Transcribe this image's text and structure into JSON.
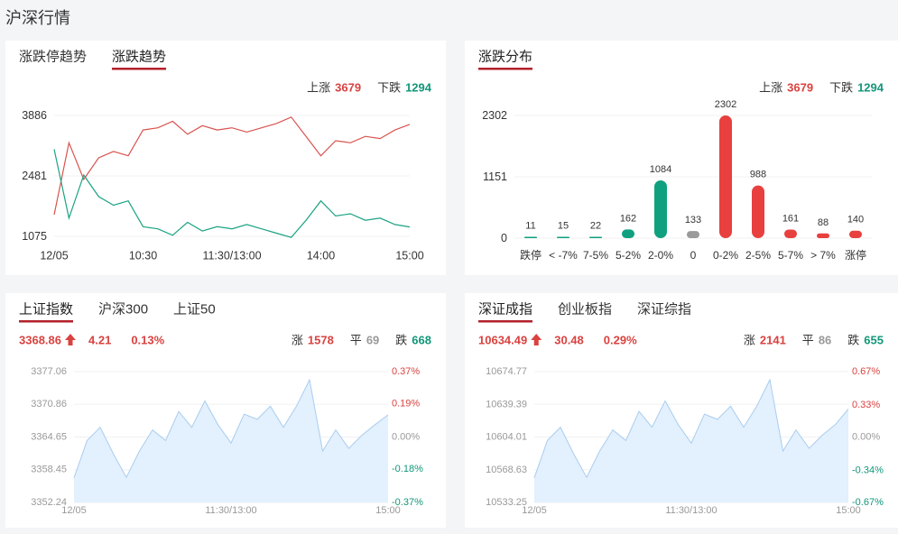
{
  "header": {
    "title": "沪深行情"
  },
  "panels": [
    {
      "tabs": [
        "涨跌停趋势",
        "涨跌趋势"
      ],
      "active_tab": 1,
      "stats": [
        {
          "label": "上涨",
          "value": 3679,
          "color": "#d9423f"
        },
        {
          "label": "下跌",
          "value": 1294,
          "color": "#12977a"
        }
      ],
      "chart_data": {
        "type": "line",
        "x": [
          0,
          10,
          20,
          30,
          40,
          50,
          60,
          70,
          80,
          90,
          100,
          110,
          120,
          130,
          140,
          150,
          160,
          170,
          180,
          190,
          200,
          210,
          220,
          230,
          240
        ],
        "xlim": [
          0,
          240
        ],
        "xticks": [
          {
            "value": 0,
            "label": "12/05"
          },
          {
            "value": 60,
            "label": "10:30"
          },
          {
            "value": 120,
            "label": "11:30/13:00"
          },
          {
            "value": 180,
            "label": "14:00"
          },
          {
            "value": 240,
            "label": "15:00"
          }
        ],
        "ylim": [
          1000,
          4000
        ],
        "yticks": [
          1075,
          2481,
          3886
        ],
        "grid": true,
        "series": [
          {
            "color": "#d9534f",
            "values": [
              1576,
              3250,
              2400,
              2900,
              3050,
              2950,
              3550,
              3600,
              3750,
              3450,
              3650,
              3550,
              3600,
              3500,
              3600,
              3700,
              3850,
              3400,
              2950,
              3300,
              3250,
              3400,
              3350,
              3550,
              3679
            ]
          },
          {
            "color": "#1aa382",
            "values": [
              3100,
              1500,
              2500,
              2000,
              1800,
              1900,
              1300,
              1250,
              1100,
              1400,
              1200,
              1300,
              1250,
              1350,
              1250,
              1150,
              1050,
              1450,
              1900,
              1550,
              1600,
              1450,
              1500,
              1350,
              1294
            ]
          }
        ]
      }
    },
    {
      "tabs": [
        "涨跌分布"
      ],
      "active_tab": 0,
      "stats": [
        {
          "label": "上涨",
          "value": 3679,
          "color": "#d9423f"
        },
        {
          "label": "下跌",
          "value": 1294,
          "color": "#12977a"
        }
      ],
      "chart_data": {
        "type": "bar",
        "categories": [
          "跌停",
          "< -7%",
          "7-5%",
          "5-2%",
          "2-0%",
          "0",
          "0-2%",
          "2-5%",
          "5-7%",
          "> 7%",
          "涨停"
        ],
        "values": [
          11,
          15,
          22,
          162,
          1084,
          133,
          2302,
          988,
          161,
          88,
          140
        ],
        "colors": [
          "#0fa17f",
          "#0fa17f",
          "#0fa17f",
          "#0fa17f",
          "#0fa17f",
          "#9a9a9a",
          "#e8403f",
          "#e8403f",
          "#e8403f",
          "#e8403f",
          "#e8403f"
        ],
        "ylim": [
          0,
          2302
        ],
        "yticks": [
          0,
          1151,
          2302
        ],
        "grid": true
      }
    },
    {
      "tabs": [
        "上证指数",
        "沪深300",
        "上证50"
      ],
      "active_tab": 0,
      "quote": {
        "price": "3368.86",
        "change": "4.21",
        "pct": "0.13%",
        "color": "#d9423f"
      },
      "stats": [
        {
          "label": "涨",
          "value": 1578,
          "color": "#d9423f"
        },
        {
          "label": "平",
          "value": 69,
          "color": "#999999"
        },
        {
          "label": "跌",
          "value": 668,
          "color": "#12977a"
        }
      ],
      "chart_data": {
        "type": "area",
        "color": "#a9cdee",
        "fill": "#e3f0fd",
        "x": [
          0,
          10,
          20,
          30,
          40,
          50,
          60,
          70,
          80,
          90,
          100,
          110,
          120,
          130,
          140,
          150,
          160,
          170,
          180,
          190,
          200,
          210,
          220,
          230,
          240
        ],
        "xlim": [
          0,
          240
        ],
        "xticks": [
          {
            "value": 0,
            "label": "12/05"
          },
          {
            "value": 120,
            "label": "11:30/13:00"
          },
          {
            "value": 240,
            "label": "15:00"
          }
        ],
        "ylim": [
          3352.24,
          3377.06
        ],
        "yticks": [
          3352.24,
          3358.45,
          3364.65,
          3370.86,
          3377.06
        ],
        "y2lim": [
          -0.37,
          0.37
        ],
        "y2ticks": [
          {
            "value": -0.37,
            "label": "-0.37%"
          },
          {
            "value": -0.18,
            "label": "-0.18%"
          },
          {
            "value": 0,
            "label": "0.00%"
          },
          {
            "value": 0.19,
            "label": "0.19%"
          },
          {
            "value": 0.37,
            "label": "0.37%"
          }
        ],
        "values": [
          3356.9,
          3364.0,
          3366.5,
          3361.5,
          3357.0,
          3362.0,
          3366.0,
          3364.0,
          3369.5,
          3366.5,
          3371.5,
          3367.0,
          3363.5,
          3369.0,
          3368.0,
          3370.5,
          3366.5,
          3370.5,
          3375.5,
          3362.0,
          3366.0,
          3362.5,
          3365.0,
          3367.0,
          3368.86
        ]
      }
    },
    {
      "tabs": [
        "深证成指",
        "创业板指",
        "深证综指"
      ],
      "active_tab": 0,
      "quote": {
        "price": "10634.49",
        "change": "30.48",
        "pct": "0.29%",
        "color": "#d9423f"
      },
      "stats": [
        {
          "label": "涨",
          "value": 2141,
          "color": "#d9423f"
        },
        {
          "label": "平",
          "value": 86,
          "color": "#999999"
        },
        {
          "label": "跌",
          "value": 655,
          "color": "#12977a"
        }
      ],
      "chart_data": {
        "type": "area",
        "color": "#a9cdee",
        "fill": "#e3f0fd",
        "x": [
          0,
          10,
          20,
          30,
          40,
          50,
          60,
          70,
          80,
          90,
          100,
          110,
          120,
          130,
          140,
          150,
          160,
          170,
          180,
          190,
          200,
          210,
          220,
          230,
          240
        ],
        "xlim": [
          0,
          240
        ],
        "xticks": [
          {
            "value": 0,
            "label": "12/05"
          },
          {
            "value": 120,
            "label": "11:30/13:00"
          },
          {
            "value": 240,
            "label": "15:00"
          }
        ],
        "ylim": [
          10533.25,
          10674.77
        ],
        "yticks": [
          10533.25,
          10568.63,
          10604.01,
          10639.39,
          10674.77
        ],
        "y2lim": [
          -0.67,
          0.67
        ],
        "y2ticks": [
          {
            "value": -0.67,
            "label": "-0.67%"
          },
          {
            "value": -0.34,
            "label": "-0.34%"
          },
          {
            "value": 0,
            "label": "0.00%"
          },
          {
            "value": 0.33,
            "label": "0.33%"
          },
          {
            "value": 0.67,
            "label": "0.67%"
          }
        ],
        "values": [
          10559.8,
          10600.3,
          10614.6,
          10586.0,
          10560.4,
          10588.9,
          10611.7,
          10600.3,
          10631.7,
          10614.6,
          10643.1,
          10617.4,
          10597.5,
          10628.8,
          10623.1,
          10637.4,
          10614.6,
          10637.4,
          10666.0,
          10588.9,
          10611.7,
          10591.8,
          10606.0,
          10617.4,
          10634.49
        ]
      }
    }
  ]
}
